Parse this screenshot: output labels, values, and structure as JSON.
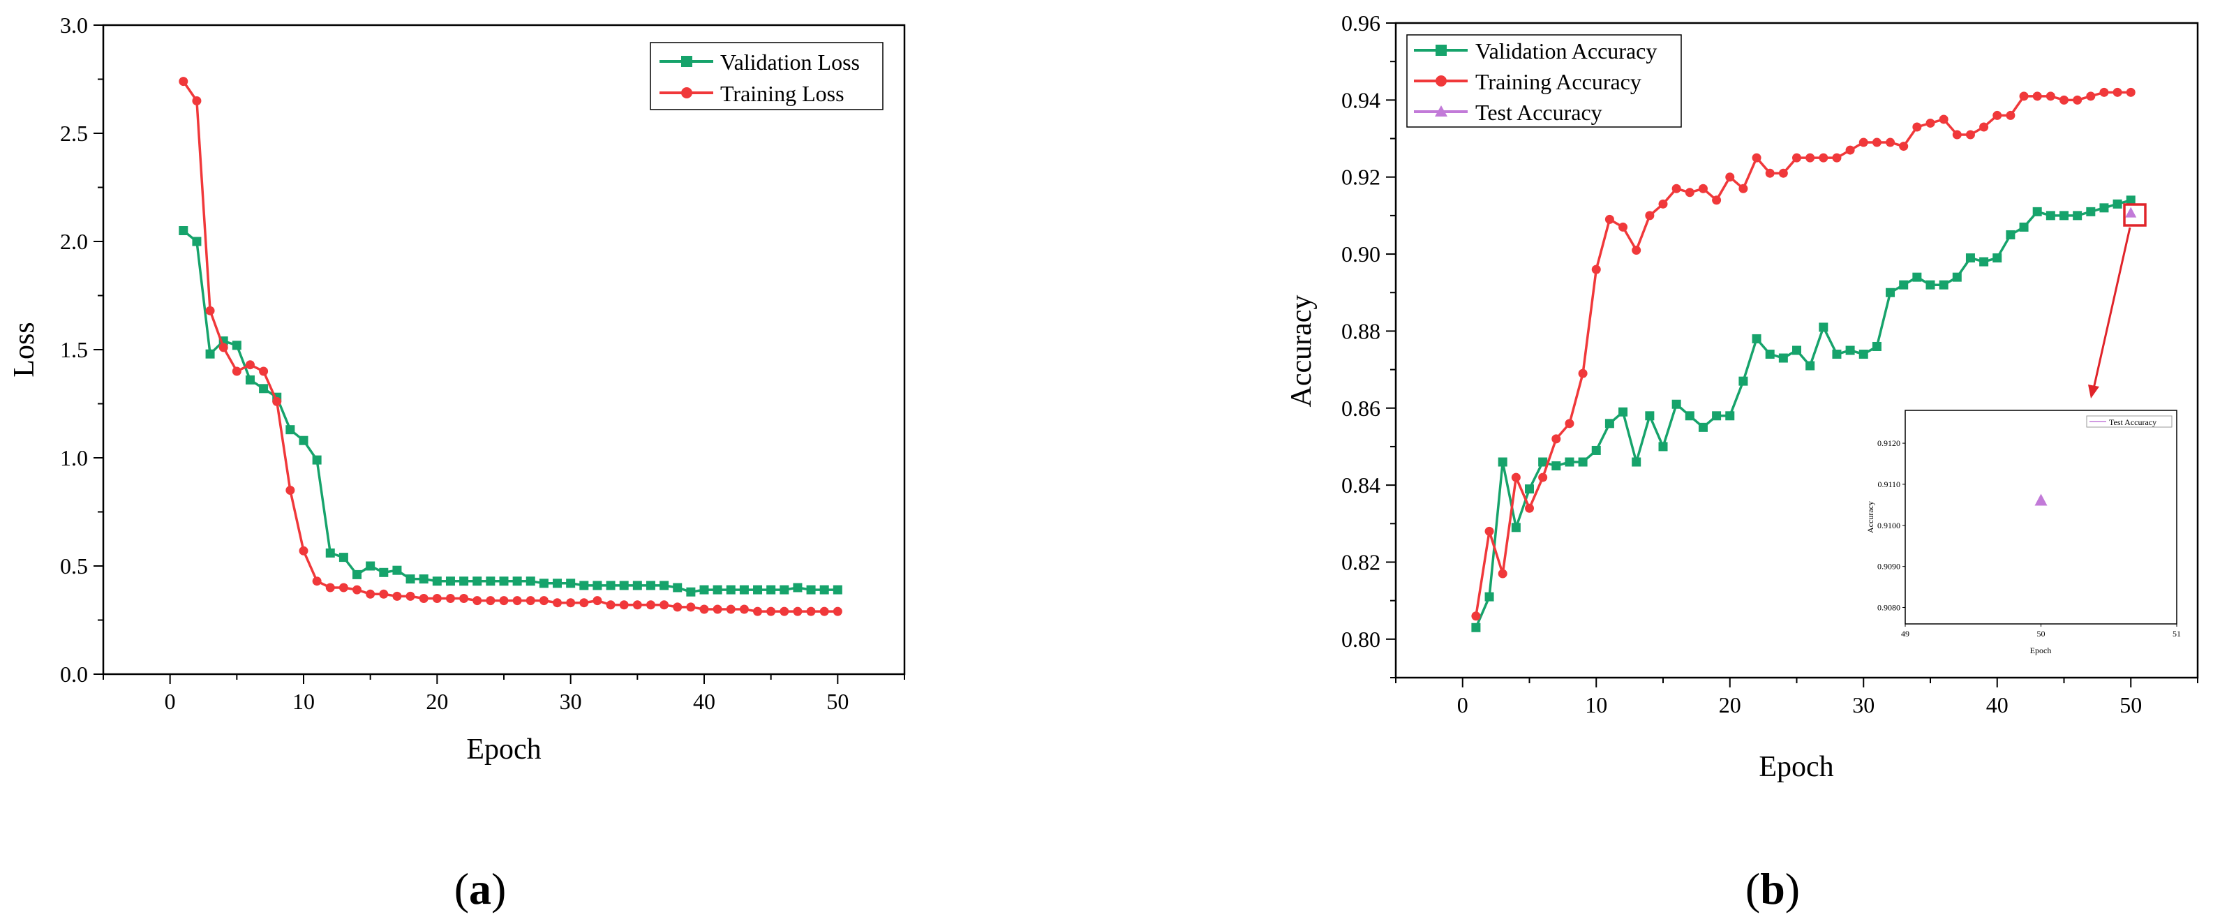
{
  "colors": {
    "validation": "#16A36B",
    "training": "#F0383A",
    "test": "#C27AD8",
    "highlight": "#E0242A"
  },
  "chart_data": [
    {
      "id": "a",
      "type": "line",
      "panel_label": "a",
      "xlabel": "Epoch",
      "ylabel": "Loss",
      "xlim": [
        -5,
        55
      ],
      "ylim": [
        0,
        3
      ],
      "xticks": [
        0,
        10,
        20,
        30,
        40,
        50
      ],
      "yticks": [
        0.0,
        0.5,
        1.0,
        1.5,
        2.0,
        2.5,
        3.0
      ],
      "ytick_decimals": 1,
      "legend_position": "top-right",
      "series": [
        {
          "name": "Validation Loss",
          "marker": "square",
          "color": "#16A36B",
          "x": [
            1,
            2,
            3,
            4,
            5,
            6,
            7,
            8,
            9,
            10,
            11,
            12,
            13,
            14,
            15,
            16,
            17,
            18,
            19,
            20,
            21,
            22,
            23,
            24,
            25,
            26,
            27,
            28,
            29,
            30,
            31,
            32,
            33,
            34,
            35,
            36,
            37,
            38,
            39,
            40,
            41,
            42,
            43,
            44,
            45,
            46,
            47,
            48,
            49,
            50
          ],
          "values": [
            2.05,
            2.0,
            1.48,
            1.54,
            1.52,
            1.36,
            1.32,
            1.28,
            1.13,
            1.08,
            0.99,
            0.56,
            0.54,
            0.46,
            0.5,
            0.47,
            0.48,
            0.44,
            0.44,
            0.43,
            0.43,
            0.43,
            0.43,
            0.43,
            0.43,
            0.43,
            0.43,
            0.42,
            0.42,
            0.42,
            0.41,
            0.41,
            0.41,
            0.41,
            0.41,
            0.41,
            0.41,
            0.4,
            0.38,
            0.39,
            0.39,
            0.39,
            0.39,
            0.39,
            0.39,
            0.39,
            0.4,
            0.39,
            0.39,
            0.39
          ]
        },
        {
          "name": "Training Loss",
          "marker": "circle",
          "color": "#F0383A",
          "x": [
            1,
            2,
            3,
            4,
            5,
            6,
            7,
            8,
            9,
            10,
            11,
            12,
            13,
            14,
            15,
            16,
            17,
            18,
            19,
            20,
            21,
            22,
            23,
            24,
            25,
            26,
            27,
            28,
            29,
            30,
            31,
            32,
            33,
            34,
            35,
            36,
            37,
            38,
            39,
            40,
            41,
            42,
            43,
            44,
            45,
            46,
            47,
            48,
            49,
            50
          ],
          "values": [
            2.74,
            2.65,
            1.68,
            1.51,
            1.4,
            1.43,
            1.4,
            1.26,
            0.85,
            0.57,
            0.43,
            0.4,
            0.4,
            0.39,
            0.37,
            0.37,
            0.36,
            0.36,
            0.35,
            0.35,
            0.35,
            0.35,
            0.34,
            0.34,
            0.34,
            0.34,
            0.34,
            0.34,
            0.33,
            0.33,
            0.33,
            0.34,
            0.32,
            0.32,
            0.32,
            0.32,
            0.32,
            0.31,
            0.31,
            0.3,
            0.3,
            0.3,
            0.3,
            0.29,
            0.29,
            0.29,
            0.29,
            0.29,
            0.29,
            0.29
          ]
        }
      ]
    },
    {
      "id": "b",
      "type": "line",
      "panel_label": "b",
      "xlabel": "Epoch",
      "ylabel": "Accuracy",
      "xlim": [
        -5,
        55
      ],
      "ylim": [
        0.79,
        0.96
      ],
      "xticks": [
        0,
        10,
        20,
        30,
        40,
        50
      ],
      "yticks": [
        0.8,
        0.82,
        0.84,
        0.86,
        0.88,
        0.9,
        0.92,
        0.94,
        0.96
      ],
      "ytick_decimals": 2,
      "legend_position": "top-left",
      "series": [
        {
          "name": "Validation Accuracy",
          "marker": "square",
          "color": "#16A36B",
          "x": [
            1,
            2,
            3,
            4,
            5,
            6,
            7,
            8,
            9,
            10,
            11,
            12,
            13,
            14,
            15,
            16,
            17,
            18,
            19,
            20,
            21,
            22,
            23,
            24,
            25,
            26,
            27,
            28,
            29,
            30,
            31,
            32,
            33,
            34,
            35,
            36,
            37,
            38,
            39,
            40,
            41,
            42,
            43,
            44,
            45,
            46,
            47,
            48,
            49,
            50
          ],
          "values": [
            0.803,
            0.811,
            0.846,
            0.829,
            0.839,
            0.846,
            0.845,
            0.846,
            0.846,
            0.849,
            0.856,
            0.859,
            0.846,
            0.858,
            0.85,
            0.861,
            0.858,
            0.855,
            0.858,
            0.858,
            0.867,
            0.878,
            0.874,
            0.873,
            0.875,
            0.871,
            0.881,
            0.874,
            0.875,
            0.874,
            0.876,
            0.89,
            0.892,
            0.894,
            0.892,
            0.892,
            0.894,
            0.899,
            0.898,
            0.899,
            0.905,
            0.907,
            0.911,
            0.91,
            0.91,
            0.91,
            0.911,
            0.912,
            0.913,
            0.914
          ]
        },
        {
          "name": "Training Accuracy",
          "marker": "circle",
          "color": "#F0383A",
          "x": [
            1,
            2,
            3,
            4,
            5,
            6,
            7,
            8,
            9,
            10,
            11,
            12,
            13,
            14,
            15,
            16,
            17,
            18,
            19,
            20,
            21,
            22,
            23,
            24,
            25,
            26,
            27,
            28,
            29,
            30,
            31,
            32,
            33,
            34,
            35,
            36,
            37,
            38,
            39,
            40,
            41,
            42,
            43,
            44,
            45,
            46,
            47,
            48,
            49,
            50
          ],
          "values": [
            0.806,
            0.828,
            0.817,
            0.842,
            0.834,
            0.842,
            0.852,
            0.856,
            0.869,
            0.896,
            0.909,
            0.907,
            0.901,
            0.91,
            0.913,
            0.917,
            0.916,
            0.917,
            0.914,
            0.92,
            0.917,
            0.925,
            0.921,
            0.921,
            0.925,
            0.925,
            0.925,
            0.925,
            0.927,
            0.929,
            0.929,
            0.929,
            0.928,
            0.933,
            0.934,
            0.935,
            0.931,
            0.931,
            0.933,
            0.936,
            0.936,
            0.941,
            0.941,
            0.941,
            0.94,
            0.94,
            0.941,
            0.942,
            0.942,
            0.942
          ]
        },
        {
          "name": "Test Accuracy",
          "marker": "triangle",
          "color": "#C27AD8",
          "x": [
            50
          ],
          "values": [
            0.9106
          ]
        }
      ],
      "annotation": "red square around the Test Accuracy point at epoch 50 with an arrow to a zoomed inset",
      "inset": {
        "xlim": [
          49,
          51
        ],
        "ylim": [
          0.9076,
          0.9128
        ],
        "xticks": [
          49,
          50,
          51
        ],
        "yticks": [
          0.908,
          0.909,
          0.91,
          0.911,
          0.912
        ],
        "ytick_labels": [
          "0.9080",
          "0.9090",
          "0.9100",
          "0.9110",
          "0.9120"
        ],
        "xlabel": "Epoch",
        "ylabel": "Accuracy",
        "legend": "Test Accuracy",
        "point": {
          "x": 50,
          "y": 0.9106
        }
      }
    }
  ]
}
